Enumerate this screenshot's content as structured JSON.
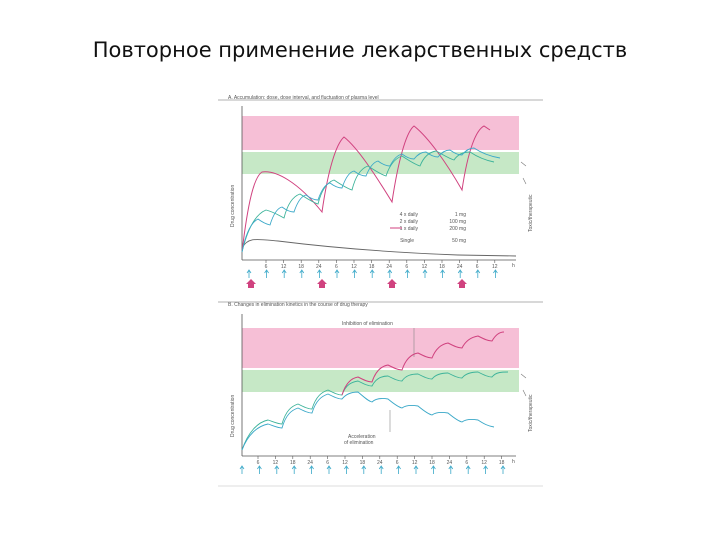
{
  "slide": {
    "title": "Повторное применение лекарственных средств"
  },
  "colors": {
    "toxic_band": "#f6bfd6",
    "therapeutic_band": "#c6e8c6",
    "magenta": "#d0427f",
    "cyan": "#3aa8c8",
    "teal": "#3cb39a",
    "gray": "#666666"
  },
  "panel_a": {
    "heading": "A. Accumulation: dose, dose interval, and fluctuation of plasma level",
    "y_label": "Drug concentration",
    "right_label": "Toxic/therapeutic",
    "hour_unit": "h",
    "time_ticks": [
      "6",
      "12",
      "18",
      "24",
      "6",
      "12",
      "18",
      "24",
      "6",
      "12",
      "18",
      "24",
      "6",
      "12"
    ],
    "legend": [
      {
        "frequency": "4 x daily",
        "dose": "1 mg",
        "color": "#3aa8c8"
      },
      {
        "frequency": "2 x daily",
        "dose": "100 mg",
        "color": "#3cb39a"
      },
      {
        "frequency": "1 x daily",
        "dose": "200 mg",
        "color": "#d0427f"
      },
      {
        "frequency": "Single",
        "dose": "50 mg",
        "color": "#666666"
      }
    ]
  },
  "panel_b": {
    "heading": "B. Changes in elimination kinetics in the course of drug therapy",
    "y_label": "Drug concentration",
    "right_label": "Toxic/therapeutic",
    "hour_unit": "h",
    "inhibition_label": "Inhibition of elimination",
    "acceleration_label_1": "Acceleration",
    "acceleration_label_2": "of elimination",
    "time_ticks": [
      "6",
      "12",
      "18",
      "24",
      "6",
      "12",
      "18",
      "24",
      "6",
      "12",
      "18",
      "24",
      "6",
      "12",
      "18"
    ]
  }
}
